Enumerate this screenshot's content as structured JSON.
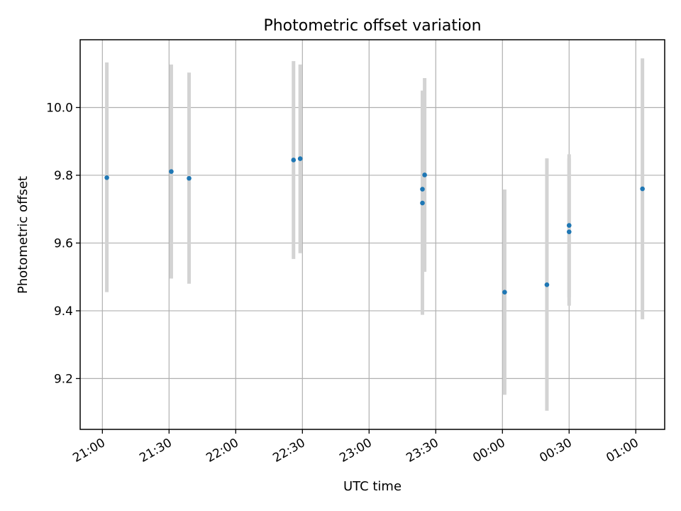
{
  "chart_data": {
    "type": "scatter",
    "title": "Photometric offset variation",
    "xlabel": "UTC time",
    "ylabel": "Photometric offset",
    "x_ticks": [
      "21:00",
      "21:30",
      "22:00",
      "22:30",
      "23:00",
      "23:30",
      "00:00",
      "00:30",
      "01:00"
    ],
    "xlim": [
      "20:50",
      "01:13"
    ],
    "y_ticks": [
      9.2,
      9.4,
      9.6,
      9.8,
      10.0
    ],
    "ylim": [
      9.05,
      10.2
    ],
    "grid": true,
    "marker_color": "#1f77b4",
    "errorbar_color": "#d3d3d3",
    "points": [
      {
        "time": "21:02",
        "y": 9.793,
        "yerr_low": 9.455,
        "yerr_high": 10.133
      },
      {
        "time": "21:31",
        "y": 9.811,
        "yerr_low": 9.495,
        "yerr_high": 10.127
      },
      {
        "time": "21:39",
        "y": 9.791,
        "yerr_low": 9.48,
        "yerr_high": 10.103
      },
      {
        "time": "22:26",
        "y": 9.845,
        "yerr_low": 9.553,
        "yerr_high": 10.137
      },
      {
        "time": "22:29",
        "y": 9.849,
        "yerr_low": 9.57,
        "yerr_high": 10.127
      },
      {
        "time": "23:24",
        "y": 9.759,
        "yerr_low": 9.495,
        "yerr_high": 10.025
      },
      {
        "time": "23:24",
        "y": 9.718,
        "yerr_low": 9.388,
        "yerr_high": 10.05
      },
      {
        "time": "23:25",
        "y": 9.801,
        "yerr_low": 9.515,
        "yerr_high": 10.087
      },
      {
        "time": "00:01",
        "y": 9.455,
        "yerr_low": 9.152,
        "yerr_high": 9.758
      },
      {
        "time": "00:20",
        "y": 9.477,
        "yerr_low": 9.105,
        "yerr_high": 9.85
      },
      {
        "time": "00:30",
        "y": 9.652,
        "yerr_low": 9.44,
        "yerr_high": 9.862
      },
      {
        "time": "00:30",
        "y": 9.633,
        "yerr_low": 9.415,
        "yerr_high": 9.85
      },
      {
        "time": "01:03",
        "y": 9.76,
        "yerr_low": 9.375,
        "yerr_high": 10.145
      }
    ]
  }
}
